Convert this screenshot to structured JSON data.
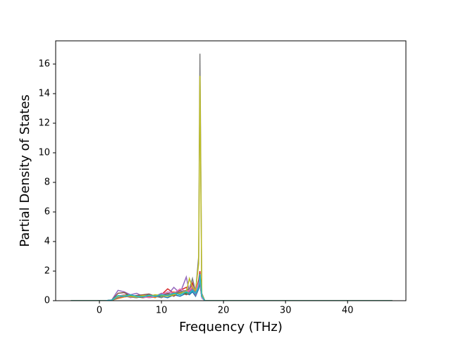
{
  "chart_data": {
    "type": "line",
    "x_label": "Frequency (THz)",
    "y_label": "Partial Density of States",
    "x": [
      -4.6,
      0,
      1,
      2,
      3,
      4,
      5,
      6,
      7,
      8,
      9,
      10,
      11,
      12,
      13,
      14,
      14.5,
      15,
      15.5,
      16,
      16.2,
      16.5,
      17,
      20,
      47.2
    ],
    "xlim": [
      -7.05,
      49.4
    ],
    "ylim": [
      0,
      17.57
    ],
    "xticks": [
      0,
      10,
      20,
      30,
      40
    ],
    "yticks": [
      0,
      2,
      4,
      6,
      8,
      10,
      12,
      14,
      16
    ],
    "series": [
      {
        "color": "#1f77b4",
        "values": [
          0,
          0,
          0,
          0.05,
          0.2,
          0.3,
          0.25,
          0.2,
          0.3,
          0.2,
          0.25,
          0.3,
          0.2,
          0.4,
          0.3,
          0.5,
          0.4,
          0.6,
          0.3,
          0.8,
          1.2,
          0.2,
          0,
          0,
          0
        ]
      },
      {
        "color": "#ff7f0e",
        "values": [
          0,
          0,
          0,
          0.03,
          0.15,
          0.25,
          0.3,
          0.2,
          0.35,
          0.3,
          0.2,
          0.5,
          0.3,
          0.6,
          0.4,
          0.7,
          0.5,
          0.9,
          0.4,
          1.0,
          1.5,
          0.3,
          0,
          0,
          0
        ]
      },
      {
        "color": "#2ca02c",
        "values": [
          0,
          0,
          0,
          0.04,
          0.3,
          0.4,
          0.35,
          0.25,
          0.2,
          0.3,
          0.4,
          0.3,
          0.5,
          0.4,
          0.6,
          0.5,
          0.8,
          1.0,
          0.6,
          1.1,
          1.3,
          0.2,
          0,
          0,
          0
        ]
      },
      {
        "color": "#d62728",
        "values": [
          0,
          0,
          0,
          0.02,
          0.2,
          0.3,
          0.25,
          0.3,
          0.2,
          0.25,
          0.35,
          0.4,
          0.8,
          0.5,
          0.7,
          0.9,
          0.6,
          1.2,
          0.5,
          1.4,
          2.0,
          0.3,
          0,
          0,
          0
        ]
      },
      {
        "color": "#9467bd",
        "values": [
          0,
          0,
          0,
          0.05,
          0.7,
          0.6,
          0.4,
          0.5,
          0.3,
          0.4,
          0.3,
          0.5,
          0.4,
          0.9,
          0.5,
          1.6,
          0.6,
          0.8,
          0.4,
          1.0,
          1.8,
          0.2,
          0,
          0,
          0
        ]
      },
      {
        "color": "#8c564b",
        "values": [
          0,
          0,
          0,
          0.03,
          0.5,
          0.55,
          0.3,
          0.35,
          0.4,
          0.45,
          0.3,
          0.35,
          0.5,
          0.3,
          0.6,
          0.4,
          0.5,
          0.7,
          0.5,
          0.9,
          1.1,
          0.2,
          0,
          0,
          0
        ]
      },
      {
        "color": "#e377c2",
        "values": [
          0,
          0,
          0,
          0.02,
          0.3,
          0.4,
          0.2,
          0.3,
          0.25,
          0.2,
          0.3,
          0.4,
          0.6,
          0.5,
          0.8,
          0.6,
          0.7,
          1.0,
          0.6,
          1.2,
          1.4,
          0.2,
          0,
          0,
          0
        ]
      },
      {
        "color": "#7f7f7f",
        "values": [
          0,
          0,
          0,
          0.02,
          0.2,
          0.3,
          0.25,
          0.2,
          0.3,
          0.4,
          0.3,
          0.2,
          0.4,
          0.5,
          0.6,
          0.7,
          0.8,
          1.5,
          0.6,
          3.0,
          16.7,
          0.5,
          0,
          0,
          0
        ]
      },
      {
        "color": "#bcbd22",
        "values": [
          0,
          0,
          0,
          0.03,
          0.3,
          0.35,
          0.3,
          0.25,
          0.35,
          0.3,
          0.4,
          0.35,
          0.3,
          0.4,
          0.5,
          0.6,
          1.5,
          0.9,
          0.7,
          2.5,
          15.2,
          0.4,
          0,
          0,
          0
        ]
      },
      {
        "color": "#17becf",
        "values": [
          0,
          0,
          0,
          0.04,
          0.35,
          0.3,
          0.4,
          0.3,
          0.25,
          0.35,
          0.3,
          0.4,
          0.35,
          0.5,
          0.4,
          0.6,
          0.5,
          0.7,
          0.5,
          0.9,
          1.8,
          0.3,
          0,
          0,
          0
        ]
      }
    ]
  }
}
